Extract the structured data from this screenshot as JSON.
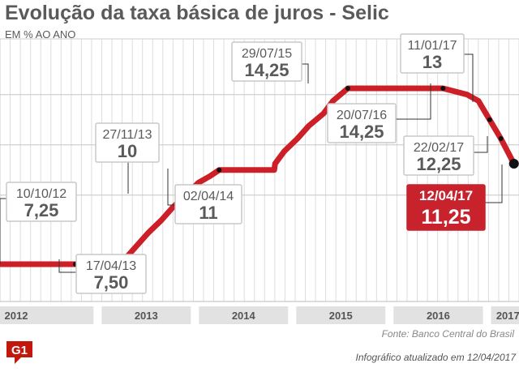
{
  "header": {
    "title": "Evolução da taxa básica de juros - Selic",
    "subtitle": "EM % AO ANO"
  },
  "footer": {
    "source": "Fonte: Banco Central do Brasil",
    "updated": "Infográfico atualizado em 12/04/2017",
    "logo_text": "G1"
  },
  "colors": {
    "line": "#cc1f27",
    "highlight": "#c8232c",
    "label_text": "#5a5a5a",
    "grid": "#cfcfcf",
    "band": "#e2e2e2",
    "marker": "#111111"
  },
  "chart_data": {
    "type": "line",
    "title": "Evolução da taxa básica de juros - Selic",
    "ylabel": "EM % AO ANO",
    "x_range": [
      "2012-01-01",
      "2017-05-01"
    ],
    "y_range": [
      6.5,
      16
    ],
    "grid": true,
    "year_labels": [
      "2012",
      "2013",
      "2014",
      "2015",
      "2016",
      "2017"
    ],
    "series": [
      {
        "points": [
          [
            "2012-01-01",
            7.25
          ],
          [
            "2012-10-10",
            7.25
          ],
          [
            "2013-01-15",
            7.25
          ],
          [
            "2013-04-17",
            7.5
          ],
          [
            "2013-05-29",
            8.0
          ],
          [
            "2013-07-10",
            8.5
          ],
          [
            "2013-08-28",
            9.0
          ],
          [
            "2013-10-09",
            9.5
          ],
          [
            "2013-11-27",
            10.0
          ],
          [
            "2014-01-15",
            10.5
          ],
          [
            "2014-02-26",
            10.75
          ],
          [
            "2014-04-02",
            11.0
          ],
          [
            "2014-10-26",
            11.0
          ],
          [
            "2014-10-29",
            11.25
          ],
          [
            "2014-12-03",
            11.75
          ],
          [
            "2015-01-21",
            12.25
          ],
          [
            "2015-03-04",
            12.75
          ],
          [
            "2015-04-29",
            13.25
          ],
          [
            "2015-06-03",
            13.75
          ],
          [
            "2015-07-29",
            14.25
          ],
          [
            "2016-07-20",
            14.25
          ],
          [
            "2016-10-19",
            14.0
          ],
          [
            "2016-11-30",
            13.75
          ],
          [
            "2017-01-11",
            13.0
          ],
          [
            "2017-02-22",
            12.25
          ],
          [
            "2017-04-12",
            11.25
          ]
        ]
      }
    ],
    "annotations": [
      {
        "date": "2012-10-10",
        "value": 7.25,
        "date_label": "10/10/12",
        "value_label": "7,25"
      },
      {
        "date": "2013-04-17",
        "value": 7.5,
        "date_label": "17/04/13",
        "value_label": "7,50"
      },
      {
        "date": "2013-11-27",
        "value": 10.0,
        "date_label": "27/11/13",
        "value_label": "10"
      },
      {
        "date": "2014-04-02",
        "value": 11.0,
        "date_label": "02/04/14",
        "value_label": "11"
      },
      {
        "date": "2015-07-29",
        "value": 14.25,
        "date_label": "29/07/15",
        "value_label": "14,25"
      },
      {
        "date": "2016-07-20",
        "value": 14.25,
        "date_label": "20/07/16",
        "value_label": "14,25"
      },
      {
        "date": "2017-01-11",
        "value": 13.0,
        "date_label": "11/01/17",
        "value_label": "13"
      },
      {
        "date": "2017-02-22",
        "value": 12.25,
        "date_label": "22/02/17",
        "value_label": "12,25"
      },
      {
        "date": "2017-04-12",
        "value": 11.25,
        "date_label": "12/04/17",
        "value_label": "11,25",
        "highlight": true
      }
    ]
  }
}
